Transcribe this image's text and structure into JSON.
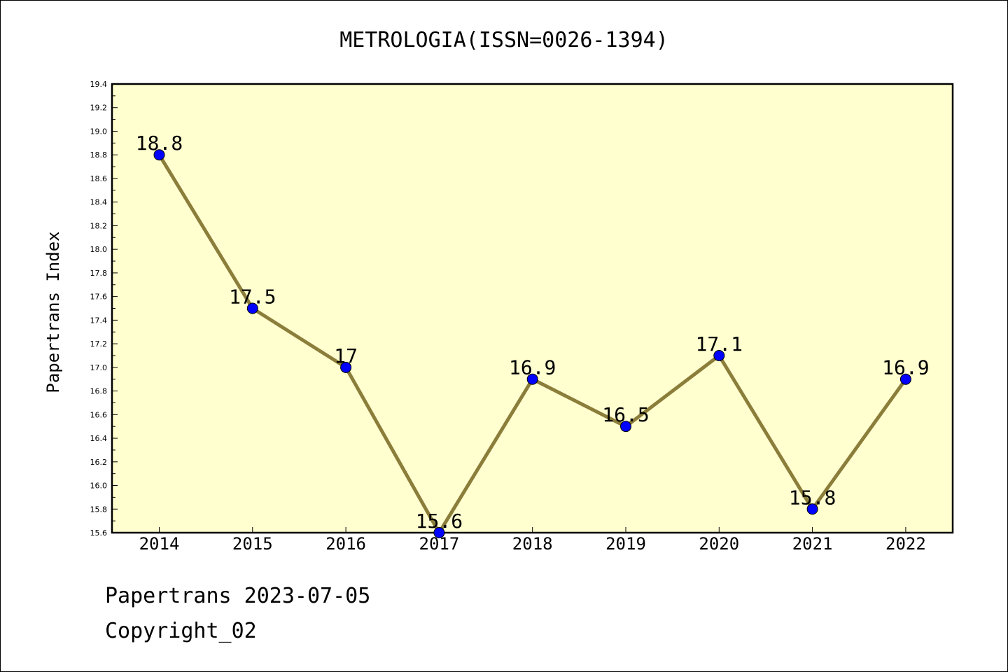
{
  "chart_data": {
    "type": "line",
    "title": "METROLOGIA(ISSN=0026-1394)",
    "xlabel": "",
    "ylabel": "Papertrans Index",
    "categories": [
      "2014",
      "2015",
      "2016",
      "2017",
      "2018",
      "2019",
      "2020",
      "2021",
      "2022"
    ],
    "series": [
      {
        "values": [
          18.8,
          17.5,
          17.0,
          15.6,
          16.9,
          16.5,
          17.1,
          15.8,
          16.9
        ]
      }
    ],
    "data_labels": [
      "18.8",
      "17.5",
      "17",
      "15.6",
      "16.9",
      "16.5",
      "17.1",
      "15.8",
      "16.9"
    ],
    "ylim": [
      15.6,
      19.4
    ],
    "y_ticks": [
      "15.6",
      "15.8",
      "16.0",
      "16.2",
      "16.4",
      "16.6",
      "16.8",
      "17.0",
      "17.2",
      "17.4",
      "17.6",
      "17.8",
      "18.0",
      "18.2",
      "18.4",
      "18.6",
      "18.8",
      "19.0",
      "19.2",
      "19.4"
    ],
    "grid": false,
    "legend": "none",
    "colors": {
      "plot_background": "#ffffd0",
      "line": "#8b7d3a",
      "marker": "#0000ff"
    }
  },
  "footer": {
    "source": "Papertrans 2023-07-05",
    "copyright": "Copyright_02"
  }
}
